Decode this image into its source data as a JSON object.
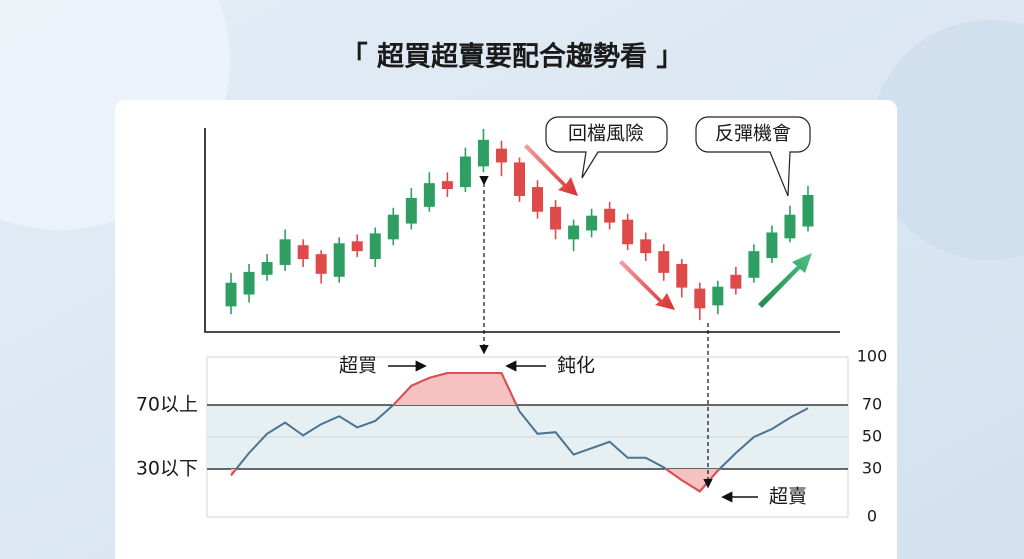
{
  "chart_data": [
    {
      "type": "candlestick",
      "title": "「 超買超賣要配合趨勢看 」",
      "categories": [
        null,
        null,
        null,
        null,
        null,
        null,
        null,
        null,
        null,
        null,
        null,
        null,
        null,
        null,
        null,
        null,
        null,
        null,
        null,
        null,
        null,
        null,
        null,
        null,
        null,
        null,
        null,
        null,
        null,
        null,
        null,
        null,
        null
      ],
      "open": [
        26,
        38,
        58,
        68,
        88,
        79,
        56,
        92,
        74,
        94,
        110,
        127,
        153,
        147,
        168,
        186,
        172,
        147,
        127,
        94,
        103,
        125,
        114,
        94,
        82,
        69,
        44,
        27,
        58,
        55,
        75,
        95,
        107
      ],
      "high": [
        60,
        69,
        79,
        104,
        94,
        83,
        96,
        99,
        106,
        126,
        146,
        162,
        162,
        187,
        206,
        194,
        177,
        154,
        134,
        114,
        125,
        132,
        120,
        101,
        89,
        74,
        50,
        52,
        66,
        89,
        108,
        128,
        148
      ],
      "low": [
        18,
        30,
        52,
        62,
        66,
        49,
        50,
        76,
        66,
        88,
        104,
        122,
        137,
        142,
        162,
        158,
        132,
        115,
        94,
        82,
        96,
        104,
        83,
        72,
        52,
        35,
        12,
        18,
        38,
        50,
        70,
        91,
        102
      ],
      "close": [
        50,
        61,
        71,
        94,
        74,
        59,
        90,
        82,
        100,
        119,
        136,
        151,
        145,
        178,
        195,
        172,
        138,
        122,
        104,
        108,
        118,
        111,
        89,
        80,
        60,
        45,
        24,
        46,
        44,
        82,
        101,
        119,
        139
      ],
      "ylim": [
        0,
        210
      ],
      "up_color": "#2f9e63",
      "down_color": "#de4a4a",
      "annotations": {
        "pullback": "回檔風險",
        "rebound": "反彈機會"
      }
    },
    {
      "type": "line",
      "categories": [
        null,
        null,
        null,
        null,
        null,
        null,
        null,
        null,
        null,
        null,
        null,
        null,
        null,
        null,
        null,
        null,
        null,
        null,
        null,
        null,
        null,
        null,
        null,
        null,
        null,
        null,
        null,
        null,
        null,
        null,
        null,
        null,
        null
      ],
      "values": [
        26,
        40,
        52,
        59,
        51,
        58,
        63,
        56,
        60,
        70,
        82,
        87,
        90,
        90,
        90,
        90,
        66,
        52,
        53,
        39,
        43,
        47,
        37,
        37,
        31,
        23,
        16,
        29,
        40,
        50,
        55,
        62,
        68
      ],
      "ylim": [
        0,
        100
      ],
      "yticks": [
        0,
        30,
        50,
        70,
        100
      ],
      "color": "#4d7390",
      "extreme_color": "#e04f4f",
      "grid": true,
      "reference_lines": [
        {
          "value": 70,
          "label": "70以上"
        },
        {
          "value": 30,
          "label": "30以下"
        }
      ],
      "annotations": {
        "overbought": "超買",
        "dulling": "鈍化",
        "oversold": "超賣"
      }
    }
  ]
}
